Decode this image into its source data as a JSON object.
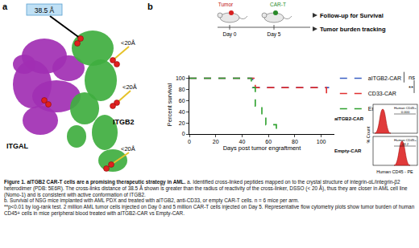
{
  "panel_a": {
    "label": "a",
    "distance_label": "38.5 Å",
    "crosslink_labels": [
      "<20Å",
      "<20Å",
      "<20Å"
    ],
    "chains": [
      "ITGAL",
      "ITGB2"
    ]
  },
  "panel_b": {
    "label": "b",
    "schematic": {
      "tumor": "Tumor",
      "cart": "CAR-T",
      "day_tumor": "Day 0",
      "day_cart": "Day 5",
      "outcomes": [
        "Follow-up for Survival",
        "Tumor burden tracking"
      ]
    },
    "flow": {
      "y_label": "% Count",
      "x_label": "Human CD45 - PE",
      "plots": [
        {
          "name": "aITGB2-CAR",
          "gate": "Human CD45+",
          "gate_value": "0.000"
        },
        {
          "name": "Empty-CAR",
          "gate": "Human CD45+",
          "gate_value": "43.2"
        }
      ]
    }
  },
  "chart_data": {
    "type": "line",
    "line_style": "dashed",
    "x_label": "Days post tumor engraftment",
    "y_label": "Percent survival",
    "series": [
      {
        "name": "aITGB2-CAR",
        "color": "#3b5fc4",
        "x": [
          0,
          48,
          106
        ],
        "values": [
          100,
          83.3,
          83.3
        ]
      },
      {
        "name": "CD33-CAR",
        "color": "#e03030",
        "x": [
          0,
          50,
          104,
          106
        ],
        "values": [
          100,
          83.3,
          66.7,
          66.7
        ]
      },
      {
        "name": "Empty-CAR",
        "color": "#2ca02c",
        "x": [
          0,
          47,
          50,
          55,
          58,
          66
        ],
        "values": [
          100,
          83.3,
          50,
          33.3,
          16.7,
          0
        ]
      }
    ],
    "xlim": [
      0,
      110
    ],
    "xticks": [
      0,
      20,
      40,
      60,
      80,
      100
    ],
    "ylim": [
      0,
      105
    ],
    "yticks": [
      0,
      20,
      40,
      60,
      80,
      100
    ],
    "grid": false,
    "legend": "upper right",
    "annotations": [
      "ns",
      "**"
    ]
  },
  "caption": [
    {
      "bold": "Figure 1. aITGB2 CAR-T cells are a promising therapeutic strategy in AML.",
      "text": " a. Identified cross-linked peptides mapped on to the crystal structure of integrin-αL/integrin-β2 heterodimer (PDB: 5E6R). The cross-links distance of 38.5 Å shown is greater than the radius of reactivity of the cross-linker, DSSO (< 20 Å), thus they are closer in AML cell line (Nomo-1) and is consistent with active conformation of ITGB2."
    },
    {
      "bold": "",
      "text": "b. Survival of NSG mice implanted with AML PDX and treated with aITGB2, anti-CD33, or empty CAR-T cells. n = 6 mice per arm."
    },
    {
      "bold": "",
      "text": "**p<0.01 by log-rank test. 2 million AML tumor cells injected on Day 0 and 5 million CAR-T cells injected on Day 5. Representative flow cytometry plots show tumor burden of human CD45+ cells in mice peripheral blood treated with aITGB2-CAR vs Empty-CAR."
    }
  ]
}
